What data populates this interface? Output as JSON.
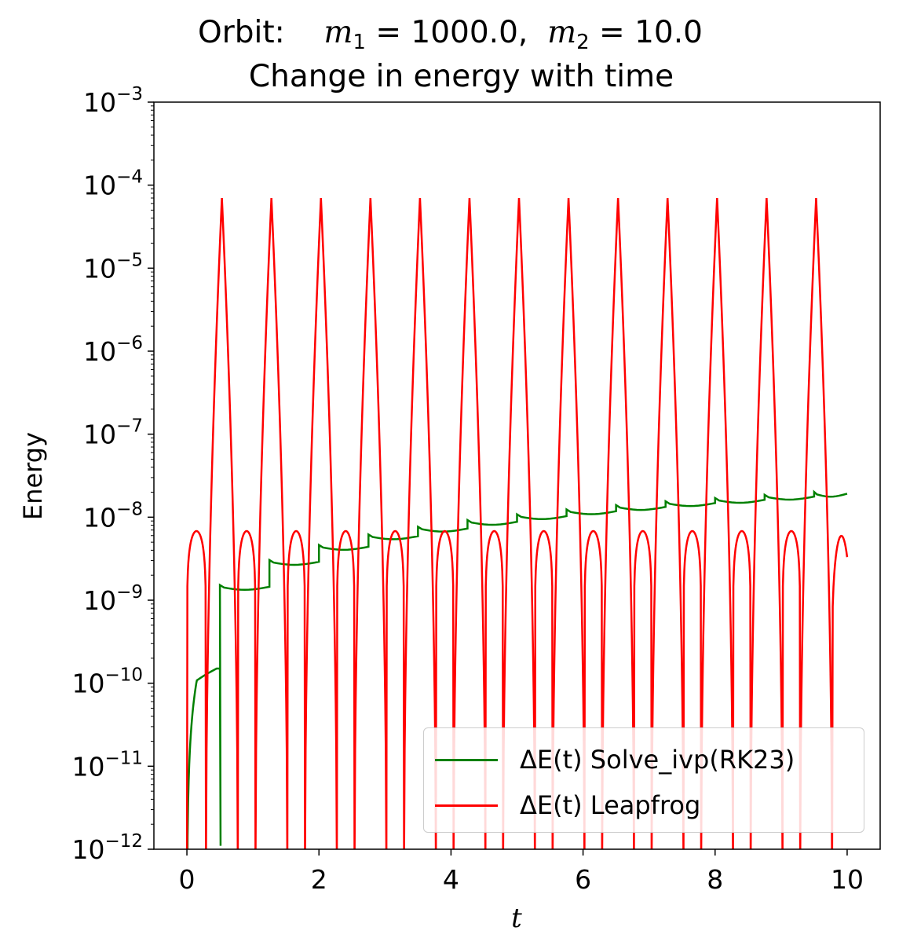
{
  "title": {
    "line1_prefix": "Orbit:",
    "m1_symbol": "m",
    "m1_sub": "1",
    "m1_value": "= 1000.0,",
    "m2_symbol": "m",
    "m2_sub": "2",
    "m2_value": "= 10.0",
    "line2": "Change in energy with time"
  },
  "legend": {
    "prefix": "ΔE(t)",
    "items": [
      {
        "label": "Solve_ivp(RK23)",
        "color": "#008000"
      },
      {
        "label": "Leapfrog",
        "color": "#ff0000"
      }
    ]
  },
  "chart_data": {
    "type": "line",
    "xlabel": "t",
    "ylabel": "Energy",
    "xlim": [
      -0.5,
      10.5
    ],
    "ylim": [
      1e-12,
      0.001
    ],
    "yscale": "log",
    "x_ticks": [
      0,
      2,
      4,
      6,
      8,
      10
    ],
    "y_ticks": [
      1e-12,
      1e-11,
      1e-10,
      1e-09,
      1e-08,
      1e-07,
      1e-06,
      1e-05,
      0.0001,
      0.001
    ],
    "y_tick_labels": [
      "10−12",
      "10−11",
      "10−10",
      "10−9",
      "10−8",
      "10−7",
      "10−6",
      "10−5",
      "10−4",
      "10−3"
    ],
    "grid": false,
    "legend_position": "lower-right",
    "series": [
      {
        "name": "ΔE(t) Solve_ivp(RK23)",
        "color": "#008000",
        "steps": [
          {
            "t_start": 0.0,
            "t_end": 0.5,
            "value_end": 1.5e-10
          },
          {
            "t_start": 0.5,
            "t_end": 1.25,
            "value": 1.45e-09
          },
          {
            "t_start": 1.25,
            "t_end": 2.0,
            "value": 2.9e-09
          },
          {
            "t_start": 2.0,
            "t_end": 2.75,
            "value": 4.4e-09
          },
          {
            "t_start": 2.75,
            "t_end": 3.5,
            "value": 5.9e-09
          },
          {
            "t_start": 3.5,
            "t_end": 4.25,
            "value": 7.3e-09
          },
          {
            "t_start": 4.25,
            "t_end": 5.0,
            "value": 8.8e-09
          },
          {
            "t_start": 5.0,
            "t_end": 5.75,
            "value": 1.03e-08
          },
          {
            "t_start": 5.75,
            "t_end": 6.5,
            "value": 1.18e-08
          },
          {
            "t_start": 6.5,
            "t_end": 7.25,
            "value": 1.33e-08
          },
          {
            "t_start": 7.25,
            "t_end": 8.0,
            "value": 1.48e-08
          },
          {
            "t_start": 8.0,
            "t_end": 8.75,
            "value": 1.62e-08
          },
          {
            "t_start": 8.75,
            "t_end": 9.5,
            "value": 1.77e-08
          },
          {
            "t_start": 9.5,
            "t_end": 10.0,
            "value": 1.92e-08
          }
        ]
      },
      {
        "name": "ΔE(t) Leapfrog",
        "color": "#ff0000",
        "period": 0.75,
        "first_peak_t": 0.53,
        "peak_value": 7e-05,
        "hump_value": 6.8e-09,
        "zero_crossings": [
          0.0,
          0.29,
          0.77,
          1.04,
          1.52,
          1.79,
          2.27,
          2.54,
          3.02,
          3.29,
          3.77,
          4.04,
          4.52,
          4.79,
          5.27,
          5.54,
          6.02,
          6.29,
          6.77,
          7.04,
          7.52,
          7.79,
          8.27,
          8.54,
          9.02,
          9.29,
          9.77
        ],
        "t_end": 10.0,
        "value_end": 3.3e-09
      }
    ]
  }
}
